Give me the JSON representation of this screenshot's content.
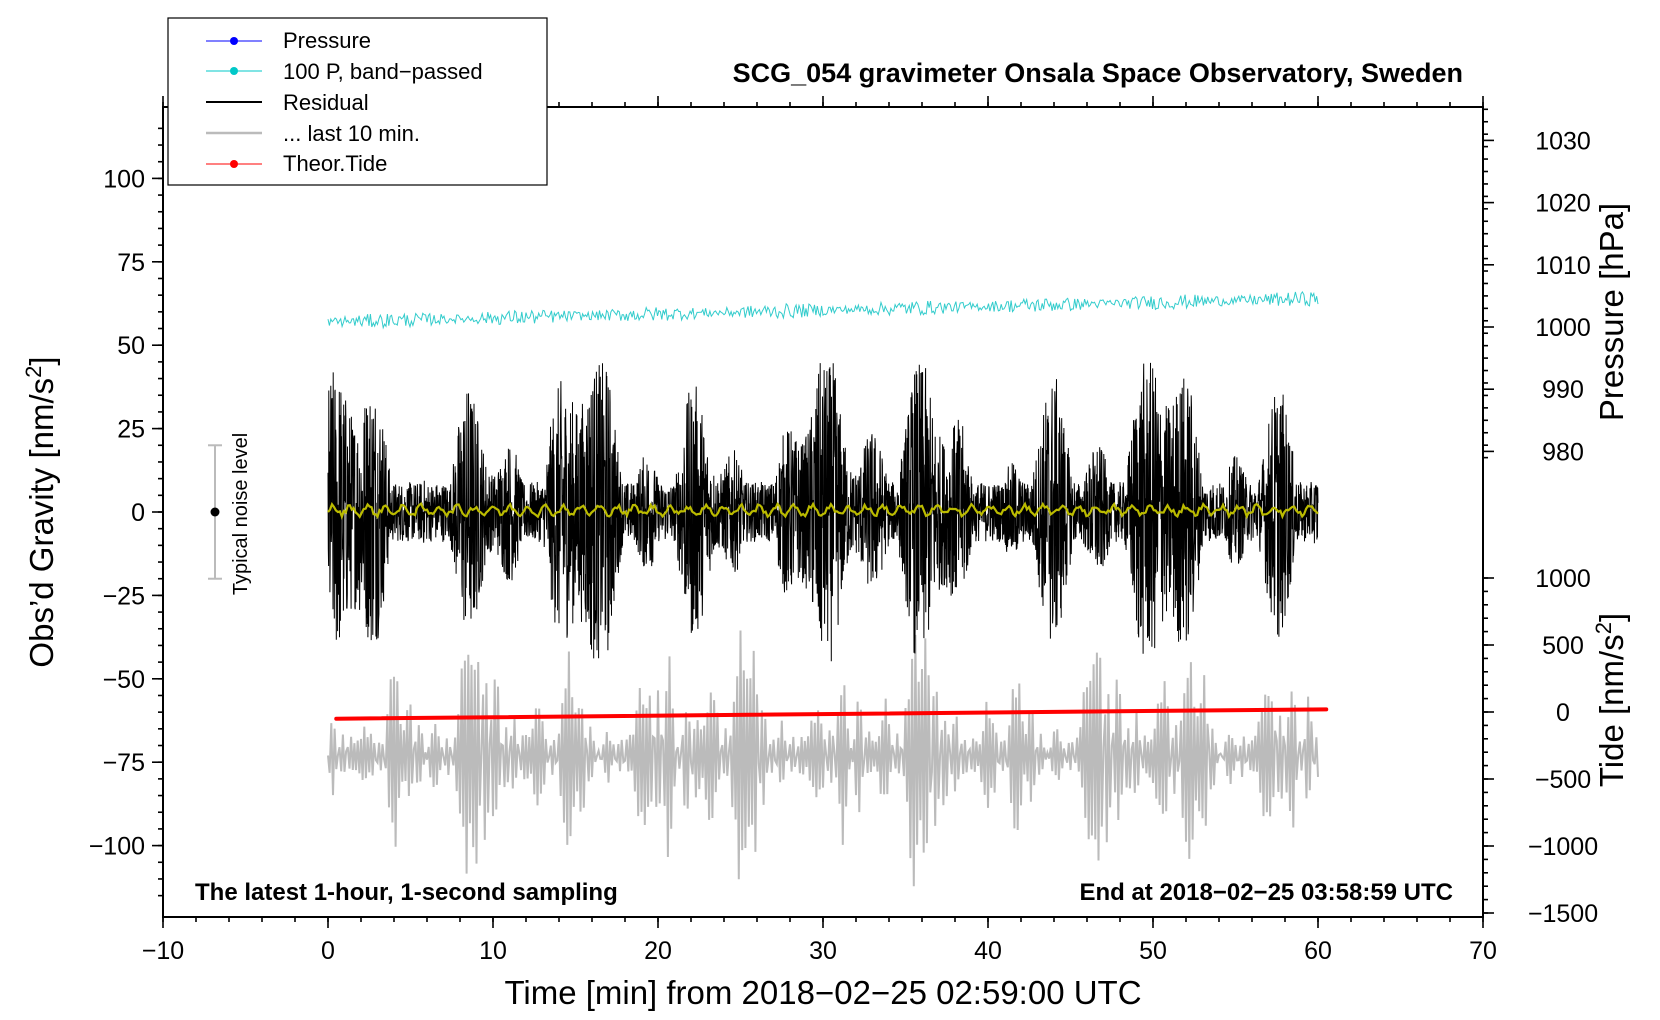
{
  "chart_data": {
    "type": "line",
    "title": "SCG_054 gravimeter Onsala Space Observatory, Sweden",
    "xlabel": "Time [min] from 2018−02−25 02:59:00 UTC",
    "ylabel_left": "Obs’d Gravity [nm/s",
    "ylabel_left_sup": "2",
    "ylabel_left_end": "]",
    "ylabel_right_pressure": "Pressure [hPa]",
    "ylabel_right_tide": "Tide [nm/s",
    "ylabel_right_tide_sup": "2",
    "ylabel_right_tide_end": "]",
    "xlim": [
      -10,
      70
    ],
    "ylim_left": [
      -120,
      120
    ],
    "x_ticks": [
      "−10",
      "0",
      "10",
      "20",
      "30",
      "40",
      "50",
      "60",
      "70"
    ],
    "x_tick_values": [
      -10,
      0,
      10,
      20,
      30,
      40,
      50,
      60,
      70
    ],
    "y_left_ticks": [
      "100",
      "75",
      "50",
      "25",
      "0",
      "−25",
      "−50",
      "−75",
      "−100"
    ],
    "y_left_tick_values": [
      100,
      75,
      50,
      25,
      0,
      -25,
      -50,
      -75,
      -100
    ],
    "pressure_ticks": [
      "1030",
      "1020",
      "1010",
      "1000",
      "990",
      "980"
    ],
    "pressure_tick_values": [
      1030,
      1020,
      1010,
      1000,
      990,
      980
    ],
    "tide_ticks": [
      "1000",
      "500",
      "0",
      "−500",
      "−1000",
      "−1500"
    ],
    "tide_tick_values": [
      1000,
      500,
      0,
      -500,
      -1000,
      -1500
    ],
    "bottom_left_note": "The latest 1-hour, 1-second sampling",
    "bottom_right_note": "End at 2018−02−25 03:58:59 UTC",
    "noise_label": "Typical noise level",
    "noise_range": [
      -20,
      20
    ],
    "legend": [
      {
        "label": "Pressure",
        "color": "#0000ff",
        "marker": true
      },
      {
        "label": "100 P, band−passed",
        "color": "#00c8c8",
        "marker": true
      },
      {
        "label": "Residual",
        "color": "#000000",
        "marker": false
      },
      {
        "label": "... last 10 min.",
        "color": "#bbbbbb",
        "marker": false
      },
      {
        "label": "Theor.Tide",
        "color": "#ff0000",
        "marker": true
      }
    ],
    "series": [
      {
        "name": "100 P, band-passed",
        "color": "#33cccc",
        "x_range": [
          0,
          60
        ],
        "approx_level_start": 57,
        "approx_level_end": 64,
        "amplitude": 2
      },
      {
        "name": "Residual",
        "color": "#000000",
        "x_range": [
          0,
          60
        ],
        "approx_center": 0,
        "amplitude_max": 45
      },
      {
        "name": "Residual smoothed",
        "color": "#bbbb00",
        "x_range": [
          0,
          60
        ],
        "approx_center": 0.5
      },
      {
        "name": "... last 10 min.",
        "color": "#bbbbbb",
        "x_range": [
          0,
          60
        ],
        "approx_center": -73,
        "amplitude_max": 45
      },
      {
        "name": "Theor.Tide",
        "color": "#ff0000",
        "x_range": [
          0.5,
          60.5
        ],
        "start_nm_s2": -50,
        "end_nm_s2": 20
      }
    ]
  }
}
